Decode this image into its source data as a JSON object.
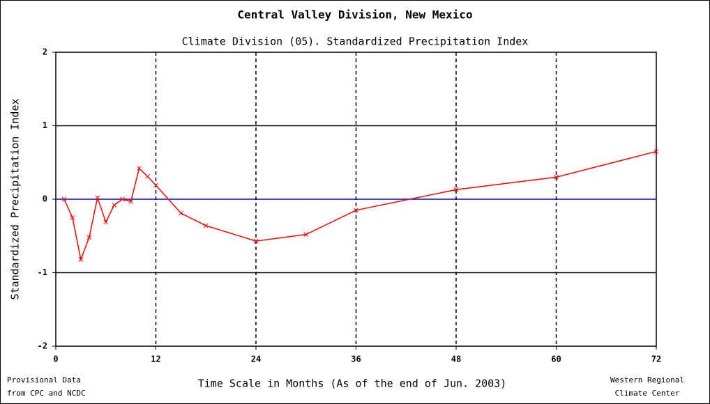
{
  "chart_data": {
    "type": "line",
    "title": "Central Valley Division, New Mexico",
    "subtitle": "Climate Division (05).  Standardized Precipitation Index",
    "y_label": "Standardized Precipitation Index",
    "x_label": "Time Scale in Months (As of the end of Jun. 2003)",
    "left_note": [
      "Provisional Data",
      "from CPC and NCDC"
    ],
    "right_note": [
      "Western Regional",
      "Climate Center"
    ],
    "x": [
      1,
      2,
      3,
      4,
      5,
      6,
      7,
      8,
      9,
      10,
      11,
      12,
      15,
      18,
      24,
      30,
      36,
      48,
      60,
      72
    ],
    "series": [
      {
        "color": "#ff0000",
        "values": [
          0.0,
          -0.25,
          -0.82,
          -0.52,
          0.02,
          -0.31,
          -0.08,
          0.0,
          -0.03,
          0.42,
          0.31,
          0.19,
          -0.19,
          -0.36,
          -0.57,
          -0.48,
          -0.15,
          0.13,
          0.3,
          0.65
        ]
      }
    ],
    "xlim": [
      0,
      72
    ],
    "xticks": [
      0,
      12,
      24,
      36,
      48,
      60,
      72
    ],
    "ylim": [
      -2,
      2
    ],
    "yticks": [
      -2,
      -1,
      0,
      1,
      2
    ],
    "zero_line_color": "#0000ff",
    "grid": true
  }
}
